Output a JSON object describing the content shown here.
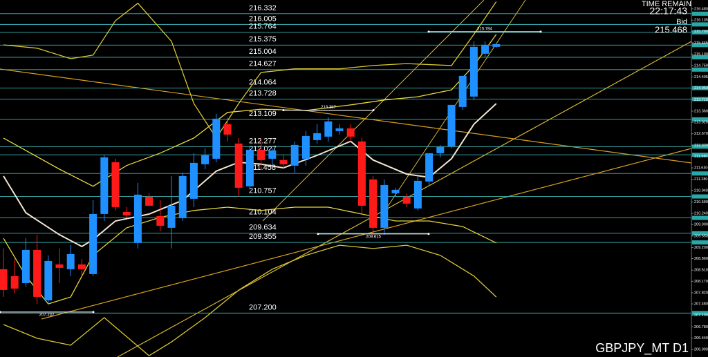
{
  "chart_data": {
    "type": "candlestick",
    "ylim": [
      205.86,
      216.75
    ],
    "yticks": [
      {
        "value": 216.48,
        "label": "216.480"
      },
      216.135,
      {
        "value": 215.79,
        "label": "215.790"
      },
      215.445,
      {
        "value": 215.1,
        "label": "215.100"
      },
      {
        "value": 214.75,
        "label": "214.750"
      },
      214.405,
      {
        "value": 214.06,
        "label": "214.060"
      },
      {
        "value": 213.71,
        "label": "213.710"
      },
      {
        "value": 213.36,
        "label": "213.360"
      },
      {
        "value": 213.02,
        "label": "213.020"
      },
      {
        "value": 212.67,
        "label": "212.670"
      },
      {
        "value": 212.32,
        "label": "212.320"
      },
      {
        "value": 211.98,
        "label": "211.980"
      },
      {
        "value": 211.63,
        "label": "211.630"
      },
      {
        "value": 211.28,
        "label": "211.280"
      },
      {
        "value": 210.94,
        "label": "210.940"
      },
      {
        "value": 210.59,
        "label": "210.590"
      },
      {
        "value": 210.24,
        "label": "210.240"
      },
      {
        "value": 209.9,
        "label": "209.900"
      },
      {
        "value": 209.55,
        "label": "209.550"
      },
      {
        "value": 209.2,
        "label": "209.200"
      },
      {
        "value": 208.86,
        "label": "208.860"
      },
      {
        "value": 208.51,
        "label": "208.510"
      },
      {
        "value": 208.17,
        "label": "208.170"
      },
      {
        "value": 207.82,
        "label": "207.820"
      },
      {
        "value": 207.48,
        "label": "207.480"
      },
      {
        "value": 207.13,
        "label": "207.130"
      },
      {
        "value": 206.78,
        "label": "206.780"
      },
      {
        "value": 206.44,
        "label": "206.440"
      },
      {
        "value": 206.09,
        "label": "206.090"
      }
    ],
    "up_color": "#1e90ff",
    "down_color": "#ff1a1a",
    "open": [
      208.537,
      208.326,
      208.115,
      209.127,
      207.588,
      208.684,
      208.537,
      208.684,
      208.389,
      210.222,
      211.802,
      210.285,
      209.338,
      210.749,
      210.159,
      209.801,
      210.117,
      210.686,
      211.739,
      211.908,
      212.961,
      212.371,
      211.065,
      212.182,
      211.908,
      211.866,
      211.697,
      211.908,
      212.477,
      212.582,
      212.751,
      212.835,
      212.435,
      211.276,
      209.801,
      210.854,
      210.749,
      210.391,
      211.213,
      212.077,
      212.287,
      213.488,
      213.804,
      215.111,
      215.321
    ],
    "high": [
      209.169,
      208.853,
      209.485,
      209.59,
      208.958,
      209.169,
      209.274,
      208.853,
      210.644,
      212.013,
      211.908,
      210.433,
      211.17,
      210.854,
      210.644,
      211.381,
      211.486,
      212.077,
      212.224,
      213.277,
      213.172,
      212.54,
      212.287,
      212.54,
      212.224,
      212.013,
      212.435,
      212.751,
      212.961,
      213.172,
      212.961,
      212.961,
      212.54,
      211.381,
      211.276,
      211.023,
      210.854,
      211.381,
      212.077,
      212.329,
      213.551,
      214.436,
      215.49,
      215.49,
      215.44
    ],
    "low": [
      207.694,
      207.799,
      208.01,
      207.483,
      207.483,
      208.115,
      208.326,
      208.326,
      208.326,
      210.012,
      210.328,
      210.117,
      209.169,
      210.475,
      209.696,
      209.169,
      210.012,
      210.433,
      211.592,
      211.802,
      212.435,
      210.749,
      210.96,
      211.592,
      211.697,
      211.592,
      211.486,
      211.697,
      212.371,
      212.435,
      212.645,
      212.435,
      210.222,
      209.59,
      209.59,
      210.749,
      210.433,
      210.328,
      211.107,
      211.95,
      212.224,
      213.4,
      213.699,
      215.0,
      215.3
    ],
    "close": [
      207.905,
      207.947,
      209.127,
      207.694,
      208.789,
      208.579,
      209.0,
      208.537,
      210.222,
      211.95,
      210.433,
      210.18,
      210.812,
      210.475,
      209.864,
      210.475,
      211.381,
      211.781,
      212.013,
      213.13,
      212.645,
      211.023,
      212.182,
      211.866,
      212.161,
      211.739,
      212.329,
      212.603,
      212.687,
      213.046,
      212.835,
      212.582,
      210.475,
      209.801,
      211.107,
      210.96,
      210.538,
      211.234,
      212.077,
      212.266,
      213.551,
      214.436,
      215.321,
      215.384,
      215.405
    ],
    "series": [
      {
        "color": "#f3e4d2",
        "x": [
          0,
          2,
          5,
          7,
          8,
          10,
          13,
          16,
          19,
          21,
          23,
          25,
          28,
          31,
          33,
          36,
          38,
          40,
          42,
          44
        ],
        "values": [
          211.38,
          210.26,
          209.59,
          209.23,
          209.44,
          210.01,
          210.22,
          210.64,
          211.53,
          211.8,
          211.74,
          211.63,
          212.01,
          212.44,
          211.87,
          211.44,
          211.34,
          211.91,
          212.96,
          213.59
        ]
      },
      {
        "color": "#e8d63c",
        "x": [
          0,
          2,
          5,
          8,
          11,
          14,
          17,
          20,
          23,
          27,
          31,
          34,
          37,
          40,
          42,
          44
        ],
        "values": [
          212.54,
          212.16,
          211.59,
          211.07,
          211.7,
          212.08,
          212.54,
          213.32,
          213.42,
          213.38,
          213.55,
          213.7,
          213.8,
          214.01,
          214.75,
          215.7
        ]
      },
      {
        "color": "#e8d63c",
        "x": [
          0,
          2,
          4,
          6,
          8,
          11,
          14,
          17,
          20,
          23,
          26,
          29,
          32,
          35,
          38,
          41,
          44
        ],
        "values": [
          209.48,
          208.33,
          207.48,
          207.69,
          208.96,
          209.8,
          210.12,
          210.33,
          210.43,
          210.33,
          210.43,
          210.43,
          210.22,
          210.01,
          210.01,
          209.84,
          209.34
        ]
      },
      {
        "color": "#d8c832",
        "x": [
          0,
          3,
          6,
          8,
          10,
          12,
          15,
          17,
          19,
          21,
          23,
          26,
          30,
          33,
          36,
          40,
          42,
          44
        ],
        "values": [
          215.38,
          215.28,
          214.96,
          215.07,
          216.12,
          216.65,
          215.49,
          213.59,
          212.54,
          213.59,
          214.54,
          214.65,
          214.65,
          214.75,
          214.81,
          214.75,
          215.7,
          216.7
        ]
      },
      {
        "color": "#d8c832",
        "x": [
          0,
          3,
          6,
          9,
          13,
          15,
          18,
          21,
          24,
          27,
          30,
          33,
          36,
          39,
          42,
          44
        ],
        "values": [
          206.85,
          206.43,
          206.22,
          207.06,
          205.9,
          206.32,
          207.06,
          207.9,
          208.54,
          208.96,
          209.27,
          209.17,
          209.27,
          208.96,
          208.33,
          207.69
        ]
      }
    ],
    "levels": [
      216.332,
      216.005,
      215.764,
      215.375,
      215.004,
      214.627,
      214.064,
      213.728,
      213.109,
      212.277,
      212.027,
      211.458,
      210.757,
      210.104,
      209.634,
      209.355,
      207.2
    ],
    "level_labels": [
      "216.332",
      "216.005",
      "215.764",
      "215.375",
      "215.004",
      "214.627",
      "214.064",
      "213.728",
      "213.109",
      "212.277",
      "212.027",
      "211.458",
      "210.757",
      "210.104",
      "209.634",
      "209.355",
      "207.200"
    ],
    "markers": [
      215.784,
      213.387,
      209.615,
      207.232
    ],
    "time_label": "TIME REMAIN",
    "time_remaining": "22:17:43",
    "bid_label": "Bid",
    "bid": 215.468,
    "symbol": "GBPJPY_MT D1"
  }
}
